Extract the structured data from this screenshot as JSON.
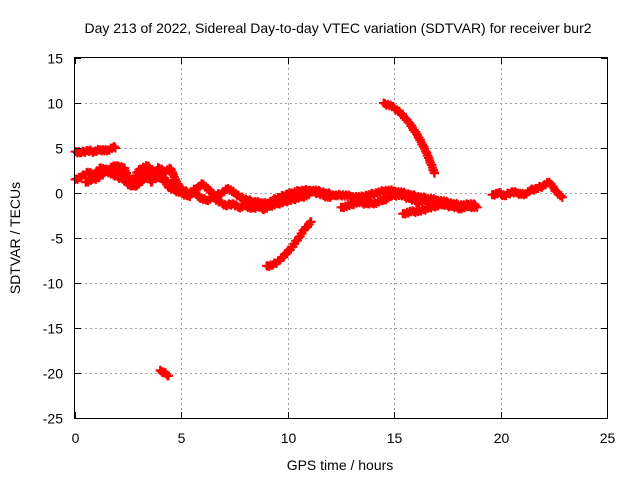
{
  "chart_data": {
    "type": "scatter",
    "title": "Day 213 of 2022, Sidereal Day-to-day VTEC variation (SDTVAR) for receiver bur2",
    "xlabel": "GPS time / hours",
    "ylabel": "SDTVAR / TECUs",
    "xlim": [
      0,
      25
    ],
    "ylim": [
      -25,
      15
    ],
    "x_ticks": [
      0,
      5,
      10,
      15,
      20,
      25
    ],
    "y_ticks": [
      15,
      10,
      5,
      0,
      -5,
      -10,
      -15,
      -20,
      -25
    ],
    "x_tick_labels": [
      "0",
      "5",
      "10",
      "15",
      "20",
      "25"
    ],
    "y_tick_labels": [
      "15",
      "10",
      "5",
      "0",
      "-5",
      "-10",
      "-15",
      "-20",
      "-25"
    ],
    "grid": true,
    "legend": "none",
    "marker_color": "#ff0000",
    "series": [
      {
        "name": "upper-left-arc",
        "x": [
          0.0,
          0.3,
          0.6,
          0.9,
          1.2,
          1.5,
          1.8,
          1.9
        ],
        "y": [
          4.6,
          4.5,
          4.7,
          4.6,
          4.8,
          4.7,
          5.1,
          5.0
        ]
      },
      {
        "name": "early-band-a",
        "x": [
          0.0,
          0.3,
          0.6,
          0.9,
          1.2,
          1.5,
          1.8,
          2.1,
          2.4,
          2.7,
          3.0,
          3.3,
          3.6,
          3.9,
          4.2,
          4.5,
          4.8,
          5.1,
          5.4,
          5.7,
          6.0,
          6.3,
          6.6,
          6.9,
          7.2,
          7.5,
          7.8,
          8.1,
          8.4,
          8.7,
          9.0,
          9.3,
          9.6,
          9.9,
          10.2,
          10.5,
          10.8,
          11.1,
          11.4,
          11.7,
          12.0
        ],
        "y": [
          1.5,
          1.8,
          2.3,
          2.0,
          2.8,
          2.5,
          3.0,
          2.2,
          1.5,
          0.8,
          1.8,
          2.5,
          1.2,
          2.8,
          2.4,
          2.7,
          1.0,
          0.2,
          0.0,
          0.5,
          1.0,
          0.3,
          -0.3,
          0.0,
          0.5,
          0.0,
          -0.5,
          -0.8,
          -1.0,
          -1.1,
          -1.2,
          -0.8,
          -0.5,
          -0.2,
          0.0,
          0.2,
          0.3,
          0.2,
          0.0,
          -0.3,
          -0.5
        ]
      },
      {
        "name": "early-band-b",
        "x": [
          0.5,
          0.8,
          1.1,
          1.4,
          1.7,
          2.0,
          2.3,
          2.6,
          2.9,
          3.2,
          3.5,
          3.8,
          4.1,
          4.4,
          4.7,
          5.0,
          5.3,
          5.6,
          5.9,
          6.2,
          6.5,
          6.8,
          7.1,
          7.4,
          7.7,
          8.0,
          8.3,
          8.6,
          8.9,
          9.2,
          9.5,
          9.8,
          10.1,
          10.4,
          10.7,
          11.0
        ],
        "y": [
          1.2,
          1.5,
          1.7,
          2.3,
          2.6,
          3.0,
          2.8,
          1.2,
          0.8,
          1.5,
          2.5,
          1.6,
          1.9,
          0.6,
          0.3,
          0.0,
          -0.3,
          0.2,
          -0.6,
          -0.8,
          -0.5,
          -1.0,
          -1.4,
          -1.2,
          -1.6,
          -1.4,
          -1.7,
          -1.5,
          -1.8,
          -1.4,
          -1.2,
          -1.0,
          -0.8,
          -0.6,
          -0.4,
          -0.2
        ]
      },
      {
        "name": "early-band-c",
        "x": [
          1.0,
          1.4,
          1.8,
          2.2,
          2.6,
          3.0,
          3.4,
          3.8,
          4.2,
          4.6,
          5.0,
          5.4
        ],
        "y": [
          2.0,
          2.6,
          2.0,
          1.6,
          0.8,
          2.6,
          3.0,
          2.2,
          1.4,
          0.8,
          0.3,
          -0.4
        ]
      },
      {
        "name": "mid-band",
        "x": [
          11.0,
          11.4,
          11.8,
          12.2,
          12.6,
          13.0,
          13.4,
          13.8,
          14.2,
          14.6,
          15.0,
          15.4,
          15.8,
          16.2,
          16.6,
          17.0,
          17.4,
          17.8,
          18.2,
          18.6,
          18.8
        ],
        "y": [
          0.3,
          0.2,
          0.0,
          -0.3,
          -0.2,
          -0.4,
          -0.5,
          -0.2,
          0.0,
          0.3,
          0.2,
          0.0,
          -0.2,
          -0.5,
          -0.6,
          -0.8,
          -1.0,
          -1.2,
          -1.4,
          -1.2,
          -1.3
        ]
      },
      {
        "name": "mid-band-lower",
        "x": [
          12.5,
          12.9,
          13.3,
          13.7,
          14.1,
          14.5,
          14.9,
          15.3,
          15.7,
          16.1,
          16.5,
          16.9,
          17.3,
          17.7,
          18.1,
          18.5,
          18.9
        ],
        "y": [
          -1.6,
          -1.4,
          -1.0,
          -1.2,
          -1.1,
          -0.8,
          -0.3,
          -0.2,
          -0.6,
          -1.0,
          -0.8,
          -1.0,
          -1.3,
          -1.5,
          -1.7,
          -1.5,
          -1.6
        ]
      },
      {
        "name": "mid-dip",
        "x": [
          15.4,
          15.8,
          16.2,
          16.6,
          17.0,
          17.4
        ],
        "y": [
          -2.3,
          -2.1,
          -2.0,
          -1.7,
          -1.4,
          -1.0
        ]
      },
      {
        "name": "late-band",
        "x": [
          19.6,
          19.9,
          20.2,
          20.5,
          20.8,
          21.1,
          21.4,
          21.7,
          22.0,
          22.3,
          22.6,
          22.9
        ],
        "y": [
          -0.2,
          0.0,
          -0.3,
          0.1,
          0.0,
          -0.2,
          0.3,
          0.5,
          0.8,
          1.2,
          0.2,
          -0.5
        ]
      },
      {
        "name": "rising-arc",
        "x": [
          9.0,
          9.3,
          9.6,
          9.9,
          10.2,
          10.5,
          10.8,
          11.1
        ],
        "y": [
          -8.1,
          -8.0,
          -7.5,
          -6.8,
          -6.0,
          -5.0,
          -4.0,
          -3.2
        ]
      },
      {
        "name": "falling-arc",
        "x": [
          14.5,
          14.9,
          15.3,
          15.7,
          16.1,
          16.5,
          16.9
        ],
        "y": [
          10.0,
          9.6,
          8.9,
          7.8,
          6.4,
          4.6,
          2.2
        ]
      },
      {
        "name": "outlier-cluster",
        "x": [
          4.0,
          4.2,
          4.4
        ],
        "y": [
          -19.7,
          -20.0,
          -20.3
        ]
      }
    ]
  }
}
